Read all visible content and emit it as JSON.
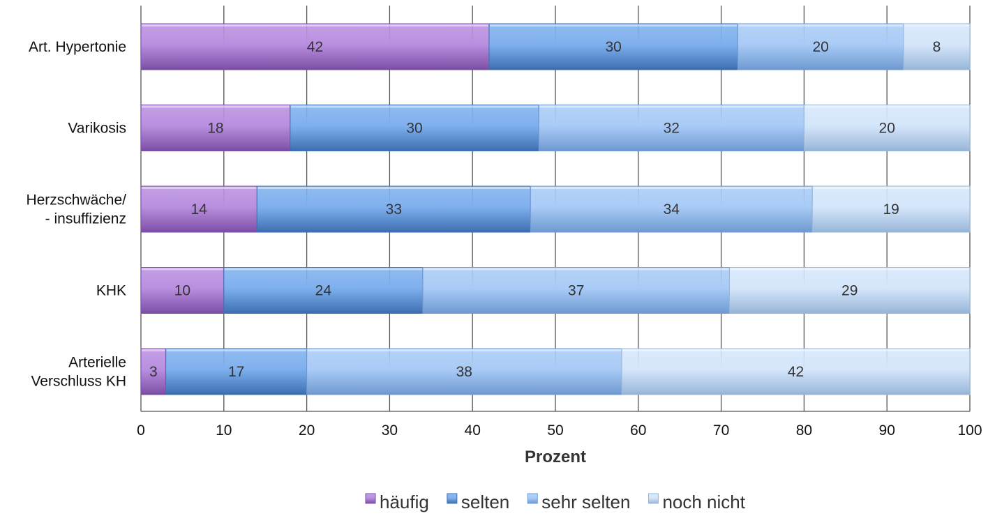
{
  "chart_data": {
    "type": "bar",
    "orientation": "horizontal",
    "stacked": true,
    "categories": [
      [
        "Art. Hypertonie"
      ],
      [
        "Varikosis"
      ],
      [
        "Herzschwäche/",
        "- insuffizienz"
      ],
      [
        "KHK"
      ],
      [
        "Arterielle",
        "Verschluss KH"
      ]
    ],
    "series": [
      {
        "name": "häufig",
        "values": [
          42,
          18,
          14,
          10,
          3
        ],
        "color": "#b98fe0",
        "dark": "#7c4fa6"
      },
      {
        "name": "selten",
        "values": [
          30,
          30,
          33,
          24,
          17
        ],
        "color": "#7fb0ee",
        "dark": "#3d6fb2"
      },
      {
        "name": "sehr selten",
        "values": [
          20,
          32,
          34,
          37,
          38
        ],
        "color": "#a9cbf6",
        "dark": "#6f9ad2"
      },
      {
        "name": "noch nicht",
        "values": [
          8,
          20,
          19,
          29,
          42
        ],
        "color": "#d5e6fb",
        "dark": "#98b6d8"
      }
    ],
    "xlabel": "Prozent",
    "xlim": [
      0,
      100
    ],
    "xticks": [
      0,
      10,
      20,
      30,
      40,
      50,
      60,
      70,
      80,
      90,
      100
    ],
    "grid": true,
    "legend": "bottom"
  }
}
